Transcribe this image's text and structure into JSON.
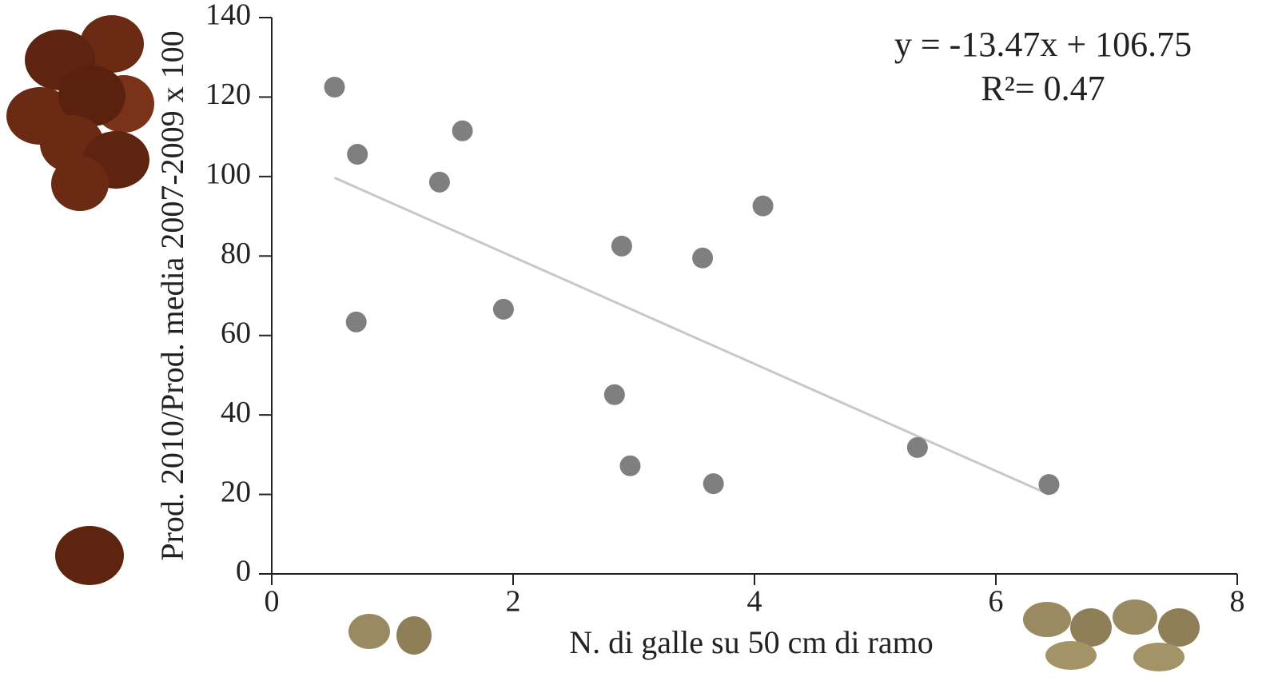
{
  "chart_data": {
    "type": "scatter",
    "x_label": "N. di galle su 50 cm di ramo",
    "y_label": "Prod. 2010/Prod. media 2007-2009 x 100",
    "annotations": [
      "y = -13.47x + 106.75",
      "R²= 0.47"
    ],
    "series": [
      {
        "color": "#7f7f7f",
        "x": [
          0.52,
          0.71,
          1.58,
          1.39,
          0.7,
          1.92,
          2.9,
          3.57,
          4.07,
          2.84,
          2.97,
          3.66,
          5.35,
          6.44
        ],
        "values": [
          122.5,
          105.6,
          111.5,
          98.6,
          63.4,
          66.6,
          82.5,
          79.5,
          92.6,
          45.1,
          27.2,
          22.7,
          31.8,
          22.5
        ]
      }
    ],
    "trendline": {
      "color": "#c8c8c8",
      "x": [
        0.52,
        6.44
      ],
      "values": [
        99.7,
        20.0
      ]
    },
    "xlim": [
      0,
      8
    ],
    "xticks": [
      0,
      2,
      4,
      6,
      8
    ],
    "ylim": [
      0,
      140
    ],
    "yticks": [
      0,
      20,
      40,
      60,
      80,
      100,
      120,
      140
    ]
  }
}
